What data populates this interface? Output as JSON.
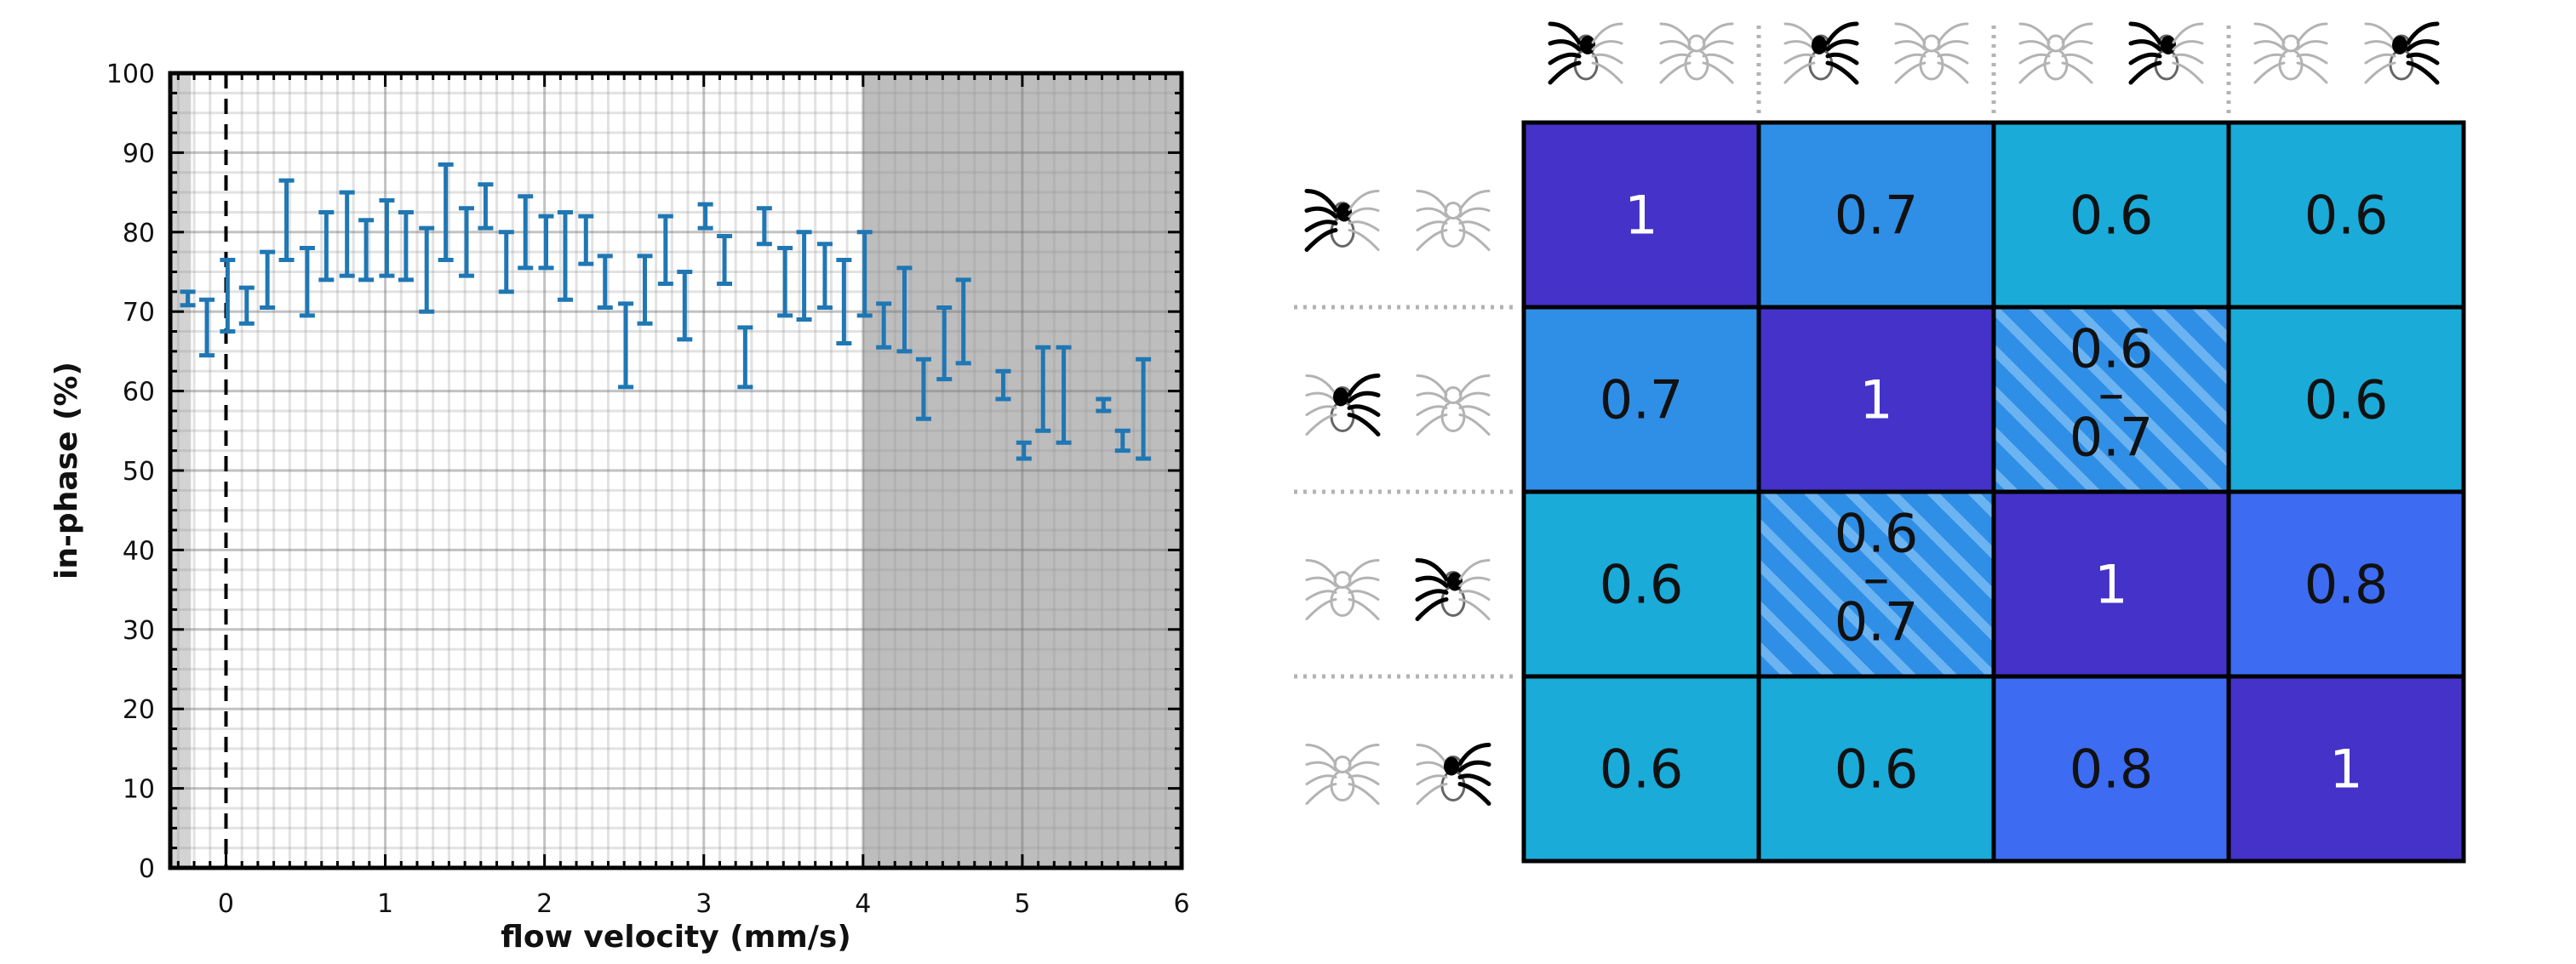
{
  "chart_data": [
    {
      "type": "errorbar",
      "xlabel": "flow velocity (mm/s)",
      "ylabel": "in-phase (%)",
      "xlim": [
        -0.35,
        6.0
      ],
      "ylim": [
        0,
        100
      ],
      "xticks": [
        "0",
        "1",
        "2",
        "3",
        "4",
        "5",
        "6"
      ],
      "yticks": [
        "0",
        "10",
        "20",
        "30",
        "40",
        "50",
        "60",
        "70",
        "80",
        "90",
        "100"
      ],
      "grid": true,
      "reference_line_x": 0,
      "shaded_regions": [
        {
          "from": -0.35,
          "to": -0.22,
          "shade": "light"
        },
        {
          "from": 4.0,
          "to": 6.0,
          "shade": "dark"
        }
      ],
      "colors": {
        "series": "#1f77b4",
        "shade_light": "#d3d3d3",
        "shade_dark": "#bdbdbd"
      },
      "series": [
        {
          "x": [
            -0.24,
            -0.12,
            0.01,
            0.13,
            0.26,
            0.38,
            0.51,
            0.63,
            0.76,
            0.88,
            1.01,
            1.13,
            1.26,
            1.38,
            1.51,
            1.63,
            1.76,
            1.88,
            2.01,
            2.13,
            2.26,
            2.38,
            2.51,
            2.63,
            2.76,
            2.88,
            3.01,
            3.13,
            3.26,
            3.38,
            3.51,
            3.63,
            3.76,
            3.88,
            4.01,
            4.13,
            4.26,
            4.38,
            4.51,
            4.63,
            4.88,
            5.01,
            5.13,
            5.26,
            5.51,
            5.63,
            5.76
          ],
          "low": [
            70.8,
            64.5,
            67.5,
            68.5,
            70.5,
            76.5,
            69.5,
            74.0,
            74.5,
            74.0,
            74.5,
            74.0,
            70.0,
            76.5,
            74.5,
            80.5,
            72.5,
            75.5,
            75.5,
            71.5,
            76.0,
            70.5,
            60.5,
            68.5,
            73.5,
            66.5,
            80.5,
            73.5,
            60.5,
            78.5,
            69.5,
            69.0,
            70.5,
            66.0,
            69.5,
            65.5,
            65.0,
            56.5,
            61.5,
            63.5,
            59.0,
            51.5,
            55.0,
            53.5,
            57.5,
            52.5,
            51.5
          ],
          "high": [
            72.5,
            71.5,
            76.5,
            73.0,
            77.5,
            86.5,
            78.0,
            82.5,
            85.0,
            81.5,
            84.0,
            82.5,
            80.5,
            88.5,
            83.0,
            86.0,
            80.0,
            84.5,
            82.0,
            82.5,
            82.0,
            77.0,
            71.0,
            77.0,
            82.0,
            75.0,
            83.5,
            79.5,
            68.0,
            83.0,
            78.0,
            80.0,
            78.5,
            76.5,
            80.0,
            71.0,
            75.5,
            64.0,
            70.5,
            74.0,
            62.5,
            53.5,
            65.5,
            65.5,
            59.0,
            55.0,
            64.0
          ]
        }
      ]
    },
    {
      "type": "heatmap",
      "values": [
        [
          "1",
          "0.7",
          "0.6",
          "0.6"
        ],
        [
          "0.7",
          "1",
          "0.6\n–\n0.7",
          "0.6"
        ],
        [
          "0.6",
          "0.6\n–\n0.7",
          "1",
          "0.8"
        ],
        [
          "0.6",
          "0.6",
          "0.8",
          "1"
        ]
      ],
      "cell_colors": [
        [
          "#4432c9",
          "#2f8fe6",
          "#1aabd9",
          "#1aabd9"
        ],
        [
          "#2f8fe6",
          "#4432c9",
          "hatch",
          "#1aabd9"
        ],
        [
          "#1aabd9",
          "hatch",
          "#4432c9",
          "#3d6cf2"
        ],
        [
          "#1aabd9",
          "#1aabd9",
          "#3d6cf2",
          "#4432c9"
        ]
      ],
      "hatch_colors": {
        "base": "#2f8fe6",
        "stripe": "#6cb3f2"
      },
      "text_colors": {
        "on_dark": "#ffffff",
        "on_light": "#111111"
      },
      "header_icons": {
        "columns": [
          {
            "icon": "spider-pair-icon",
            "highlight": "left-spider-left-legs"
          },
          {
            "icon": "spider-pair-icon",
            "highlight": "left-spider-right-legs"
          },
          {
            "icon": "spider-pair-icon",
            "highlight": "right-spider-left-legs"
          },
          {
            "icon": "spider-pair-icon",
            "highlight": "right-spider-right-legs"
          }
        ],
        "rows": [
          {
            "icon": "spider-pair-icon",
            "highlight": "left-spider-left-legs"
          },
          {
            "icon": "spider-pair-icon",
            "highlight": "left-spider-right-legs"
          },
          {
            "icon": "spider-pair-icon",
            "highlight": "right-spider-left-legs"
          },
          {
            "icon": "spider-pair-icon",
            "highlight": "right-spider-right-legs"
          }
        ]
      }
    }
  ]
}
